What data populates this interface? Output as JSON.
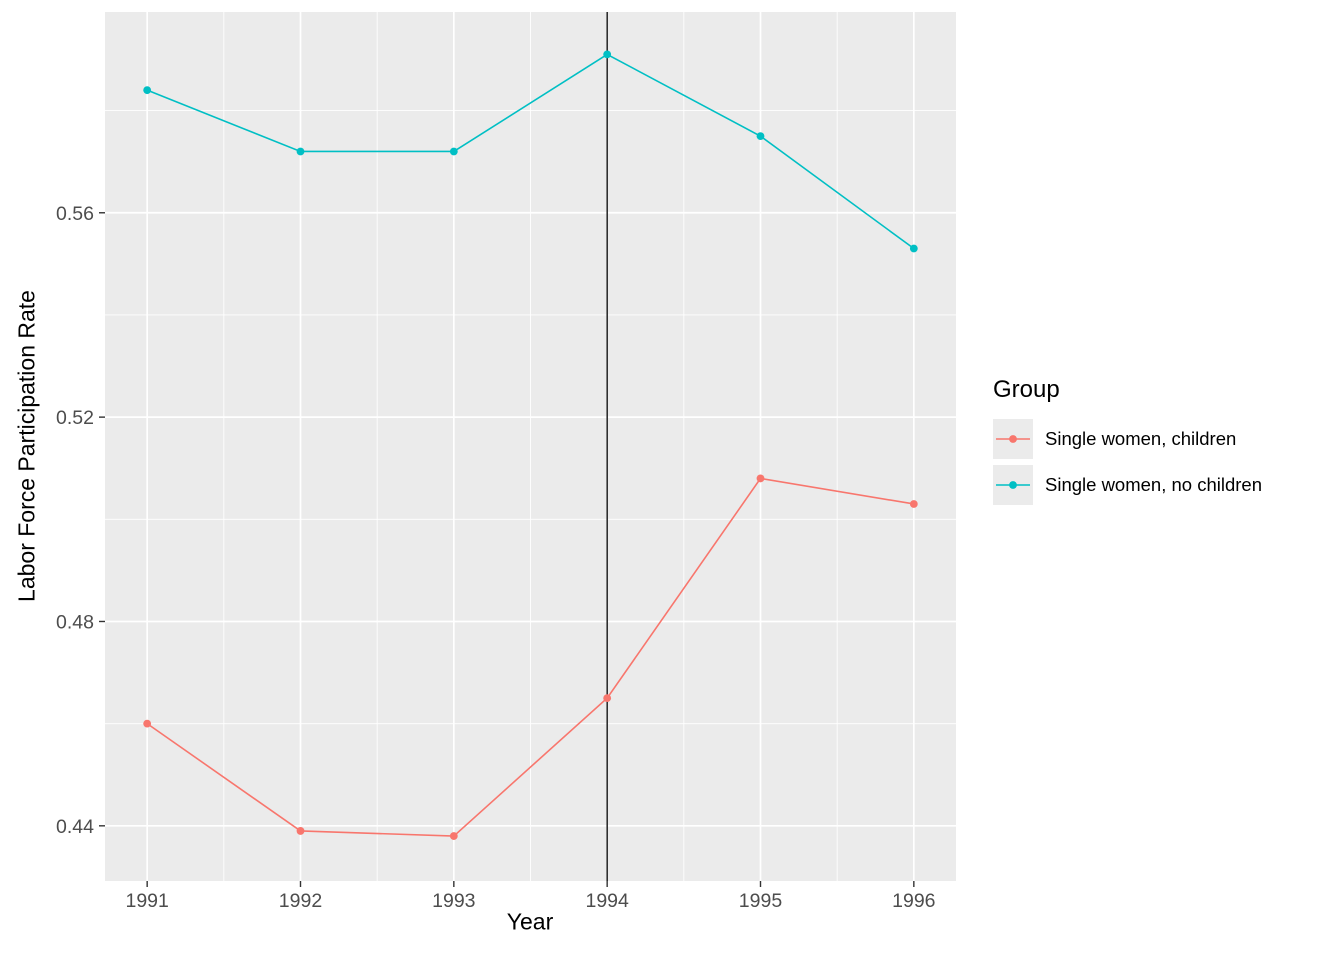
{
  "chart_data": {
    "type": "line",
    "title": "",
    "xlabel": "Year",
    "ylabel": "Labor Force Participation Rate",
    "legend_title": "Group",
    "legend_position": "right",
    "x": [
      1991,
      1992,
      1993,
      1994,
      1995,
      1996
    ],
    "series": [
      {
        "name": "Single women, children",
        "color": "#F8766D",
        "values": [
          0.46,
          0.439,
          0.438,
          0.465,
          0.508,
          0.503
        ]
      },
      {
        "name": "Single women, no children",
        "color": "#00BFC4",
        "values": [
          0.584,
          0.572,
          0.572,
          0.591,
          0.575,
          0.553
        ]
      }
    ],
    "xlim": [
      1990.725,
      1996.275
    ],
    "ylim": [
      0.4292,
      0.5993
    ],
    "x_ticks": [
      1991,
      1992,
      1993,
      1994,
      1995,
      1996
    ],
    "x_tick_labels": [
      "1991",
      "1992",
      "1993",
      "1994",
      "1995",
      "1996"
    ],
    "y_ticks": [
      0.44,
      0.48,
      0.52,
      0.56
    ],
    "y_tick_labels": [
      "0.44",
      "0.48",
      "0.52",
      "0.56"
    ],
    "x_minor": [
      1991.5,
      1992.5,
      1993.5,
      1994.5,
      1995.5
    ],
    "y_minor": [
      0.46,
      0.5,
      0.54,
      0.58
    ],
    "vline_x": 1994,
    "grid": true,
    "panel_bg": "#EBEBEB",
    "grid_color": "#FFFFFF",
    "vline_color": "#000000",
    "tick_label_color": "#4D4D4D",
    "tick_mark_color": "#333333"
  }
}
